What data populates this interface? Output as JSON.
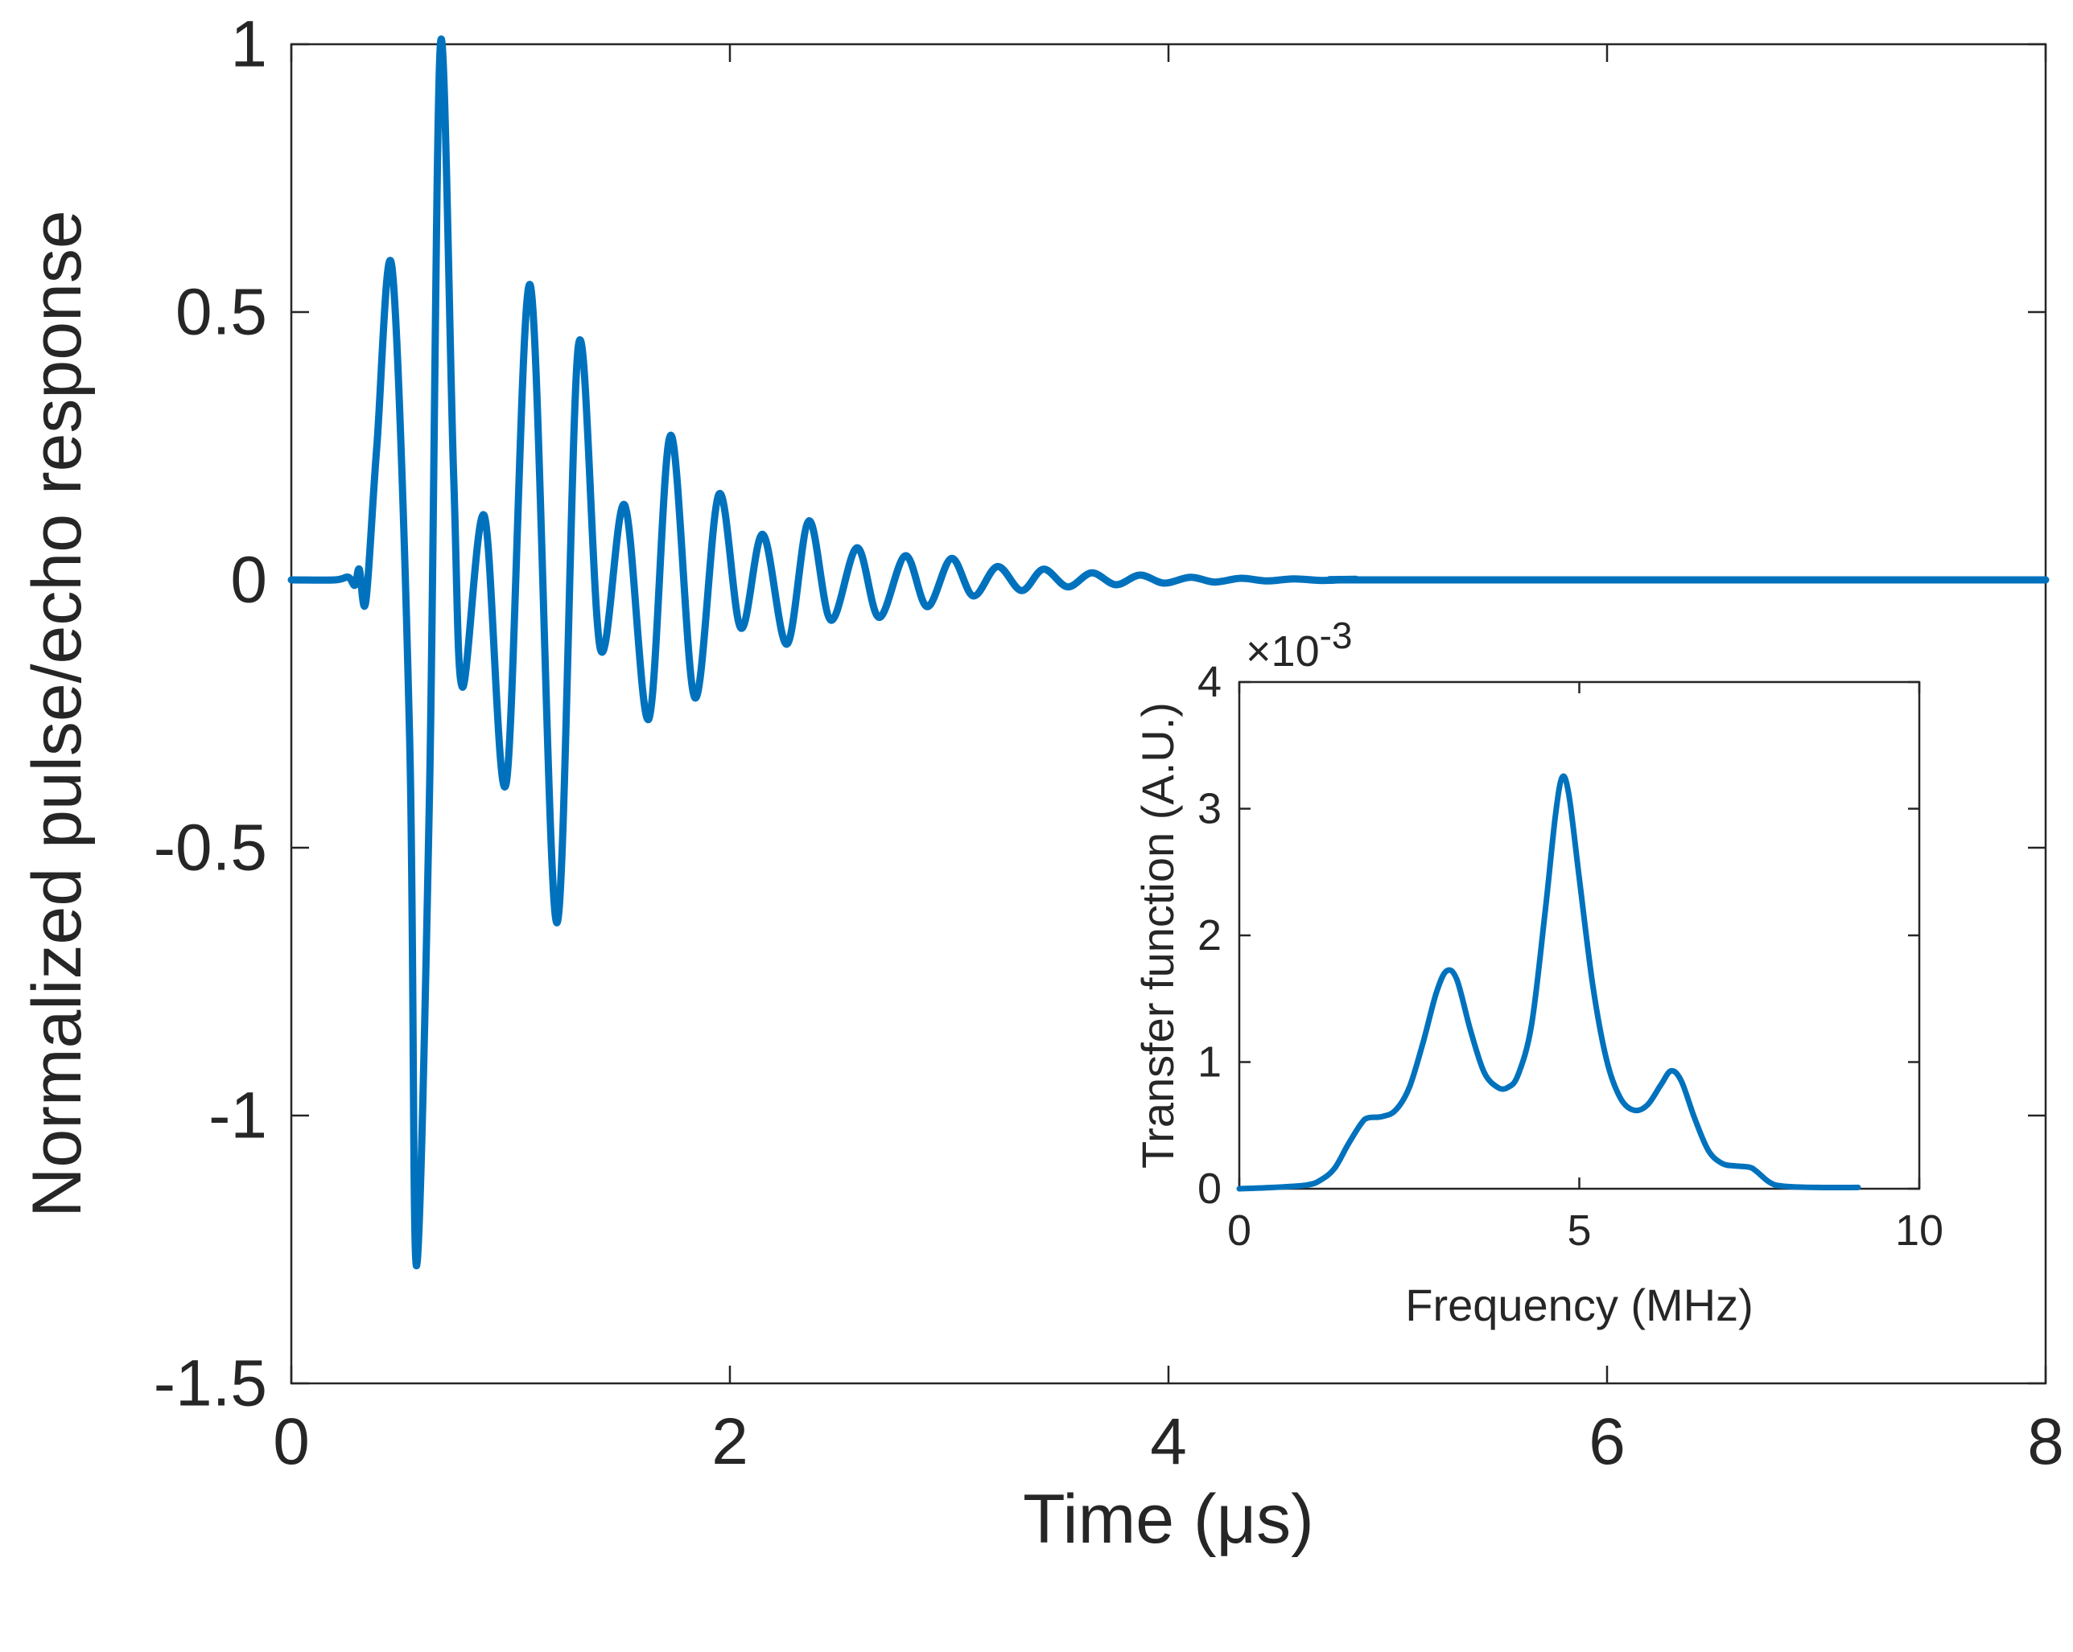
{
  "chart_data": [
    {
      "id": "main",
      "type": "line",
      "title": "",
      "xlabel": "Time (μs)",
      "ylabel": "Normalized pulse/echo response",
      "xlim": [
        0,
        8
      ],
      "ylim": [
        -1.5,
        1
      ],
      "xticks": [
        0,
        2,
        4,
        6,
        8
      ],
      "xtick_labels": [
        "0",
        "2",
        "4",
        "6",
        "8"
      ],
      "yticks": [
        -1.5,
        -1,
        -0.5,
        0,
        0.5,
        1
      ],
      "ytick_labels": [
        "-1.5",
        "-1",
        "-0.5",
        "0",
        "0.5",
        "1"
      ],
      "grid": false,
      "color": "#0072BD",
      "series": [
        {
          "name": "pulse/echo response",
          "points": [
            [
              0,
              0
            ],
            [
              0.2,
              0
            ],
            [
              0.26,
              0.005
            ],
            [
              0.29,
              -0.01
            ],
            [
              0.31,
              0.02
            ],
            [
              0.34,
              -0.04
            ],
            [
              0.39,
              0.25
            ],
            [
              0.46,
              0.58
            ],
            [
              0.54,
              -0.3
            ],
            [
              0.57,
              -1.28
            ],
            [
              0.63,
              -0.4
            ],
            [
              0.68,
              1.0
            ],
            [
              0.74,
              0.2
            ],
            [
              0.78,
              -0.2
            ],
            [
              0.88,
              0.12
            ],
            [
              0.98,
              -0.38
            ],
            [
              1.09,
              0.55
            ],
            [
              1.21,
              -0.64
            ],
            [
              1.31,
              0.44
            ],
            [
              1.41,
              -0.13
            ],
            [
              1.52,
              0.14
            ],
            [
              1.63,
              -0.26
            ],
            [
              1.73,
              0.27
            ],
            [
              1.84,
              -0.22
            ],
            [
              1.95,
              0.16
            ],
            [
              2.05,
              -0.09
            ],
            [
              2.15,
              0.085
            ],
            [
              2.26,
              -0.12
            ],
            [
              2.36,
              0.11
            ],
            [
              2.46,
              -0.075
            ],
            [
              2.58,
              0.06
            ],
            [
              2.68,
              -0.07
            ],
            [
              2.8,
              0.045
            ],
            [
              2.9,
              -0.05
            ],
            [
              3.01,
              0.04
            ],
            [
              3.11,
              -0.03
            ],
            [
              3.22,
              0.025
            ],
            [
              3.33,
              -0.02
            ],
            [
              3.43,
              0.02
            ],
            [
              3.54,
              -0.013
            ],
            [
              3.65,
              0.013
            ],
            [
              3.76,
              -0.009
            ],
            [
              3.87,
              0.009
            ],
            [
              3.98,
              -0.006
            ],
            [
              4.1,
              0.005
            ],
            [
              4.21,
              -0.004
            ],
            [
              4.33,
              0.003
            ],
            [
              4.45,
              -0.002
            ],
            [
              4.57,
              0.002
            ],
            [
              4.7,
              -0.001
            ],
            [
              4.85,
              0.001
            ],
            [
              5.0,
              0
            ],
            [
              8.0,
              0
            ]
          ]
        }
      ]
    },
    {
      "id": "inset",
      "type": "line",
      "title": "",
      "xlabel": "Frequency (MHz)",
      "ylabel": "Transfer function (A.U.)",
      "y_exponent_label": "×10",
      "y_exponent_power": "-3",
      "xlim": [
        0,
        10
      ],
      "ylim": [
        0,
        4
      ],
      "xticks": [
        0,
        5,
        10
      ],
      "xtick_labels": [
        "0",
        "5",
        "10"
      ],
      "yticks": [
        0,
        1,
        2,
        3,
        4
      ],
      "ytick_labels": [
        "0",
        "1",
        "2",
        "3",
        "4"
      ],
      "grid": false,
      "color": "#0072BD",
      "series": [
        {
          "name": "transfer function",
          "points": [
            [
              0.0,
              0.0
            ],
            [
              0.5,
              0.01
            ],
            [
              1.0,
              0.03
            ],
            [
              1.2,
              0.07
            ],
            [
              1.4,
              0.16
            ],
            [
              1.6,
              0.35
            ],
            [
              1.8,
              0.52
            ],
            [
              1.9,
              0.56
            ],
            [
              2.1,
              0.57
            ],
            [
              2.3,
              0.62
            ],
            [
              2.5,
              0.8
            ],
            [
              2.7,
              1.15
            ],
            [
              2.9,
              1.55
            ],
            [
              3.05,
              1.72
            ],
            [
              3.2,
              1.65
            ],
            [
              3.4,
              1.25
            ],
            [
              3.6,
              0.92
            ],
            [
              3.8,
              0.8
            ],
            [
              3.95,
              0.8
            ],
            [
              4.1,
              0.9
            ],
            [
              4.3,
              1.3
            ],
            [
              4.5,
              2.2
            ],
            [
              4.65,
              2.95
            ],
            [
              4.75,
              3.25
            ],
            [
              4.85,
              3.1
            ],
            [
              5.0,
              2.45
            ],
            [
              5.2,
              1.6
            ],
            [
              5.4,
              1.02
            ],
            [
              5.6,
              0.72
            ],
            [
              5.8,
              0.62
            ],
            [
              6.0,
              0.66
            ],
            [
              6.2,
              0.82
            ],
            [
              6.35,
              0.93
            ],
            [
              6.5,
              0.85
            ],
            [
              6.7,
              0.55
            ],
            [
              6.9,
              0.3
            ],
            [
              7.1,
              0.2
            ],
            [
              7.3,
              0.18
            ],
            [
              7.5,
              0.17
            ],
            [
              7.6,
              0.14
            ],
            [
              7.8,
              0.05
            ],
            [
              8.0,
              0.02
            ],
            [
              8.5,
              0.01
            ],
            [
              9.1,
              0.01
            ]
          ]
        }
      ]
    }
  ]
}
